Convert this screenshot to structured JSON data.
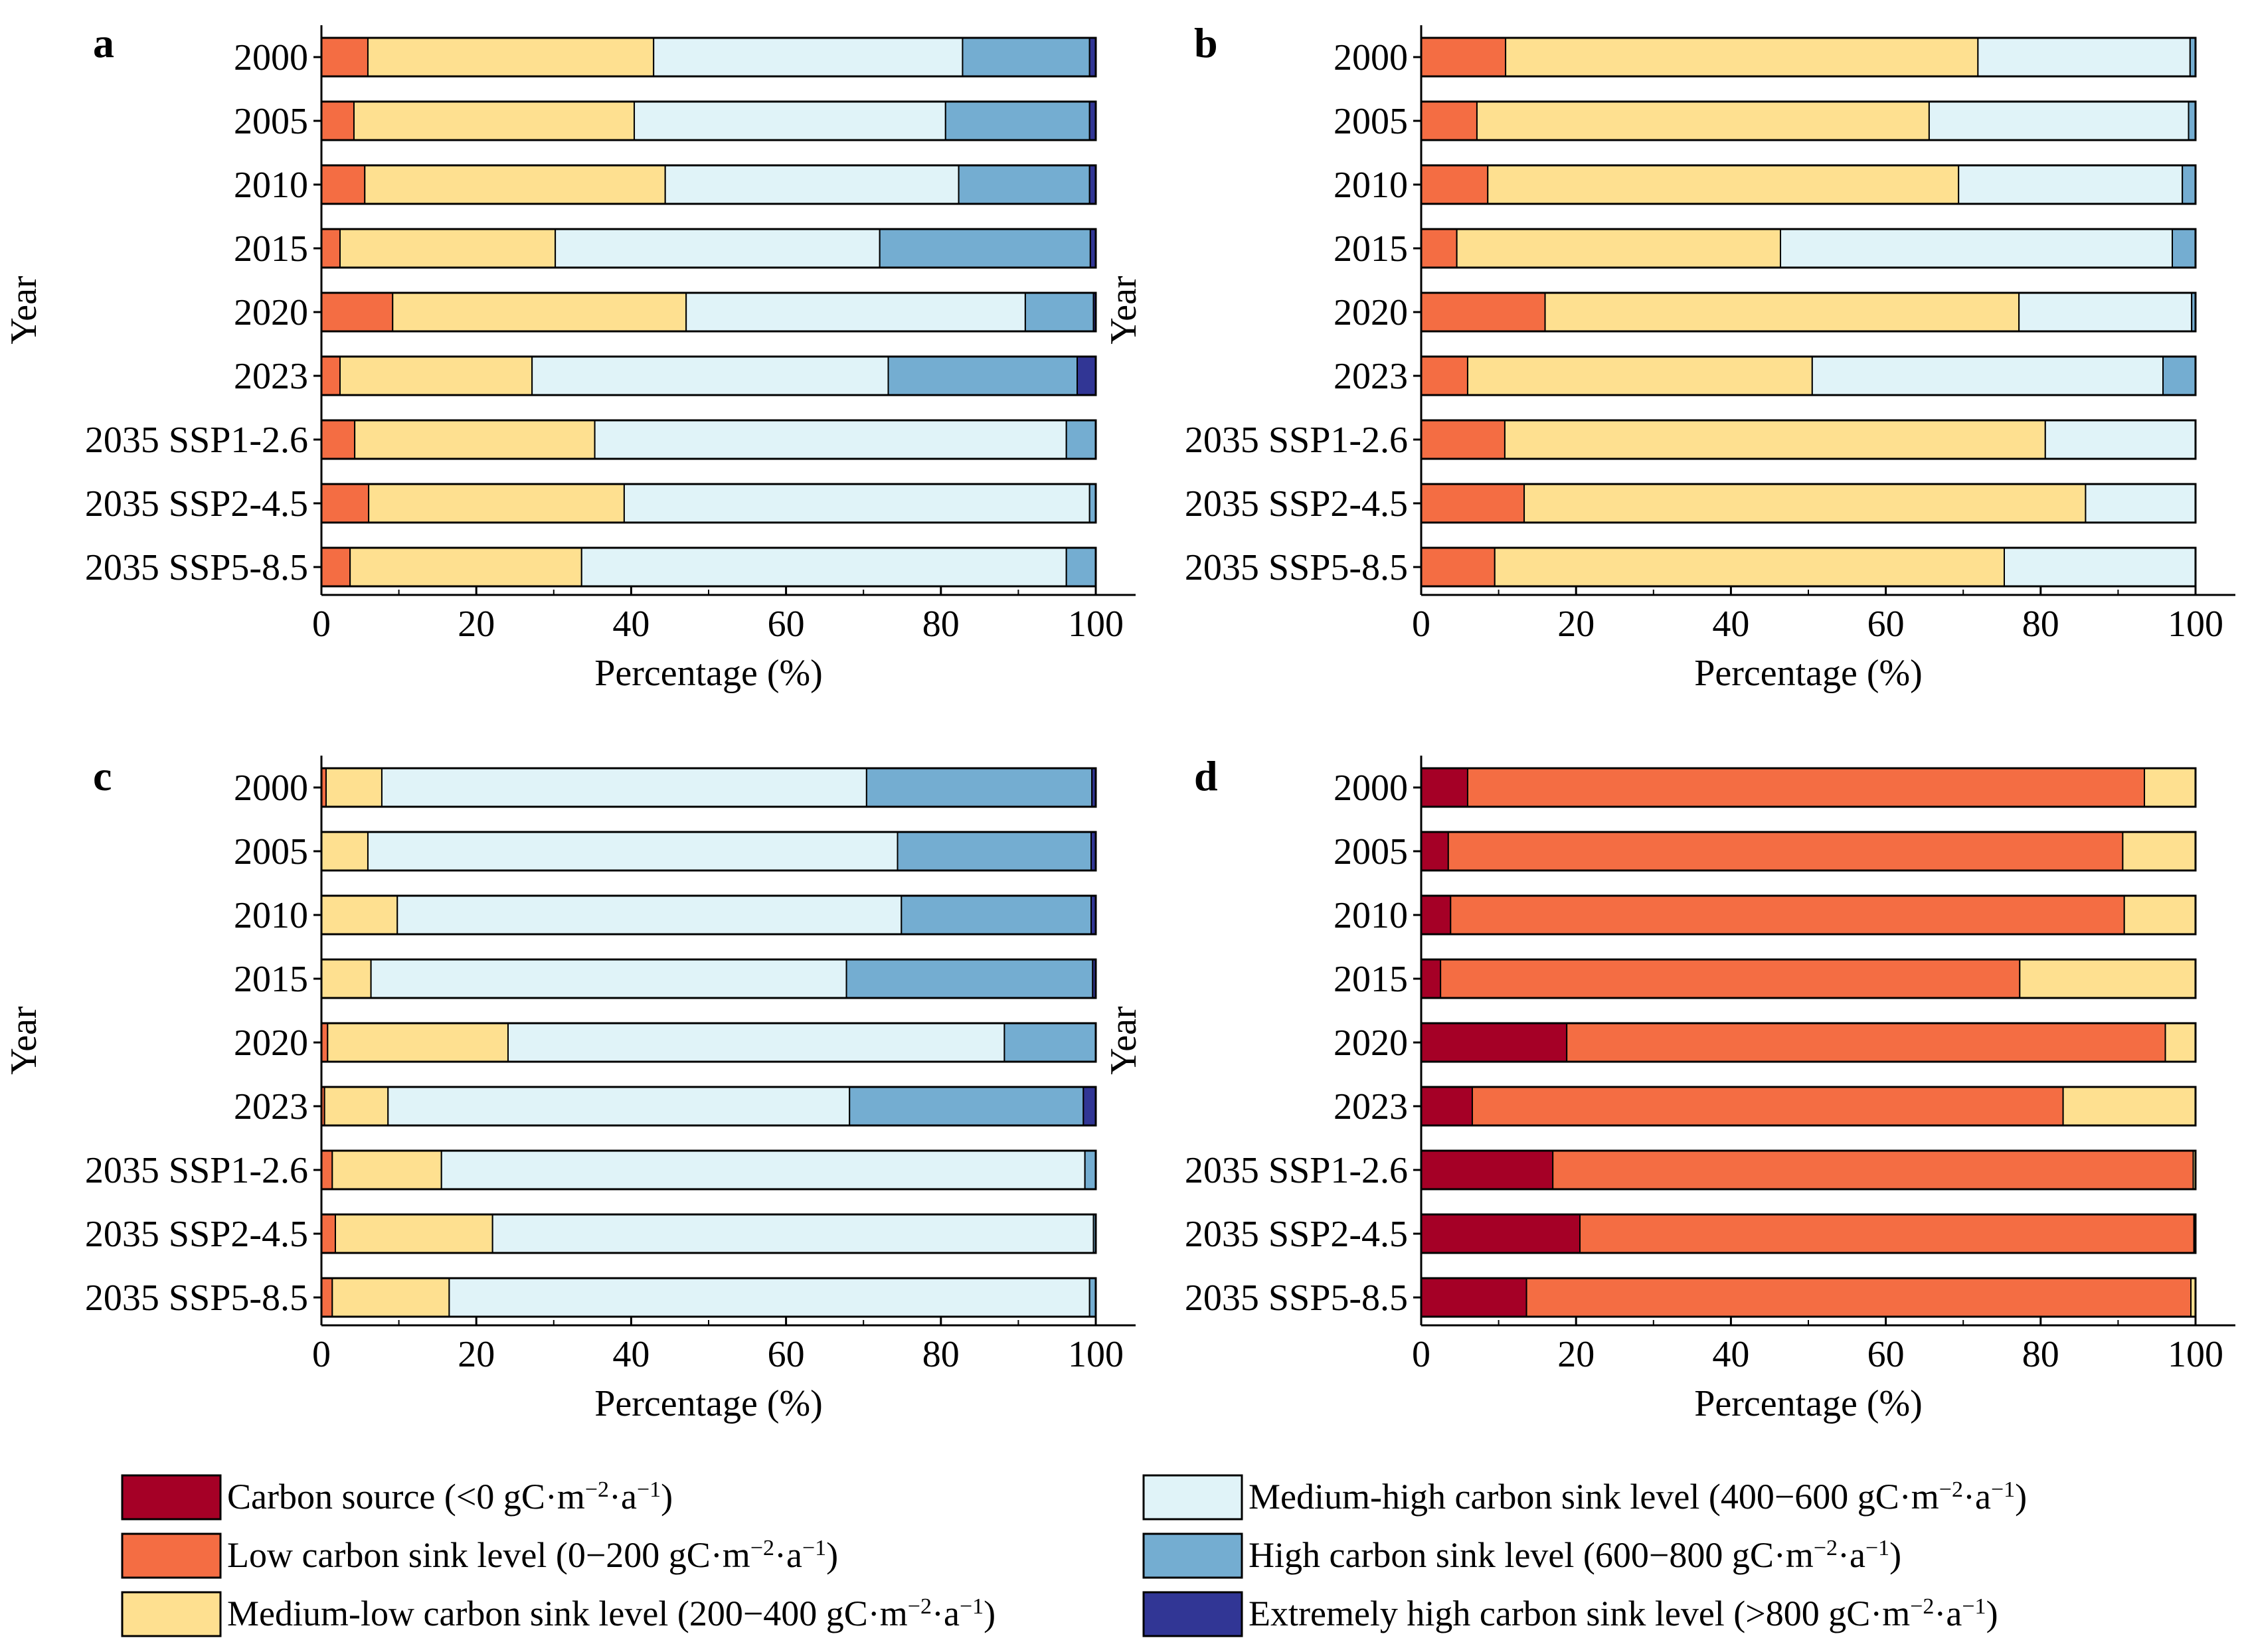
{
  "colors": {
    "source": "#a50026",
    "low": "#f46d43",
    "medlow": "#fee090",
    "medhigh": "#e0f3f8",
    "high": "#74add1",
    "extreme": "#313695"
  },
  "legend": [
    {
      "key": "source",
      "label": "Carbon source (<0 gC·m",
      "exp1": "−2",
      "mid": "·a",
      "exp2": "−1",
      "tail": ")"
    },
    {
      "key": "low",
      "label": "Low carbon sink level (0−200 gC·m",
      "exp1": "−2",
      "mid": "·a",
      "exp2": "−1",
      "tail": ")"
    },
    {
      "key": "medlow",
      "label": "Medium-low carbon sink level (200−400 gC·m",
      "exp1": "−2",
      "mid": "·a",
      "exp2": "−1",
      "tail": ")"
    },
    {
      "key": "medhigh",
      "label": "Medium-high carbon sink level (400−600 gC·m",
      "exp1": "−2",
      "mid": "·a",
      "exp2": "−1",
      "tail": ")"
    },
    {
      "key": "high",
      "label": "High carbon sink level (600−800 gC·m",
      "exp1": "−2",
      "mid": "·a",
      "exp2": "−1",
      "tail": ")"
    },
    {
      "key": "extreme",
      "label": "Extremely high carbon sink level (>800 gC·m",
      "exp1": "−2",
      "mid": "·a",
      "exp2": "−1",
      "tail": ")"
    }
  ],
  "chart_data": [
    {
      "type": "bar",
      "orientation": "horizontal-stacked",
      "panel": "a",
      "xlabel": "Percentage (%)",
      "ylabel": "Year",
      "xlim": [
        0,
        100
      ],
      "xticks": [
        0,
        20,
        40,
        60,
        80,
        100
      ],
      "categories": [
        "2000",
        "2005",
        "2010",
        "2015",
        "2020",
        "2023",
        "2035 SSP1-2.6",
        "2035 SSP2-4.5",
        "2035 SSP5-8.5"
      ],
      "series": [
        {
          "key": "source",
          "values": [
            0,
            0,
            0,
            0,
            0,
            0,
            0,
            0,
            0
          ]
        },
        {
          "key": "low",
          "values": [
            6,
            4.2,
            5.6,
            2.4,
            9.2,
            2.4,
            4.3,
            6.1,
            3.7
          ]
        },
        {
          "key": "medlow",
          "values": [
            36.9,
            36.2,
            38.8,
            27.8,
            37.9,
            24.8,
            31.0,
            33.0,
            29.9
          ]
        },
        {
          "key": "medhigh",
          "values": [
            39.9,
            40.2,
            37.9,
            41.9,
            43.8,
            46.0,
            60.9,
            60.1,
            62.6
          ]
        },
        {
          "key": "high",
          "values": [
            16.4,
            18.6,
            16.9,
            27.2,
            8.8,
            24.4,
            3.8,
            0.8,
            3.8
          ]
        },
        {
          "key": "extreme",
          "values": [
            0.8,
            0.8,
            0.8,
            0.7,
            0.3,
            2.4,
            0,
            0,
            0
          ]
        }
      ]
    },
    {
      "type": "bar",
      "orientation": "horizontal-stacked",
      "panel": "b",
      "xlabel": "Percentage (%)",
      "ylabel": "Year",
      "xlim": [
        0,
        100
      ],
      "xticks": [
        0,
        20,
        40,
        60,
        80,
        100
      ],
      "categories": [
        "2000",
        "2005",
        "2010",
        "2015",
        "2020",
        "2023",
        "2035 SSP1-2.6",
        "2035 SSP2-4.5",
        "2035 SSP5-8.5"
      ],
      "series": [
        {
          "key": "source",
          "values": [
            0,
            0,
            0,
            0,
            0,
            0,
            0,
            0,
            0
          ]
        },
        {
          "key": "low",
          "values": [
            10.9,
            7.2,
            8.6,
            4.6,
            16.0,
            6.0,
            10.8,
            13.3,
            9.5
          ]
        },
        {
          "key": "medlow",
          "values": [
            61.0,
            58.4,
            60.8,
            41.8,
            61.2,
            44.5,
            69.8,
            72.5,
            65.8
          ]
        },
        {
          "key": "medhigh",
          "values": [
            27.4,
            33.5,
            28.9,
            50.6,
            22.3,
            45.3,
            19.4,
            14.2,
            24.7
          ]
        },
        {
          "key": "high",
          "values": [
            0.7,
            0.9,
            1.7,
            3.0,
            0.5,
            4.2,
            0,
            0,
            0
          ]
        },
        {
          "key": "extreme",
          "values": [
            0,
            0,
            0,
            0,
            0,
            0,
            0,
            0,
            0
          ]
        }
      ]
    },
    {
      "type": "bar",
      "orientation": "horizontal-stacked",
      "panel": "c",
      "xlabel": "Percentage (%)",
      "ylabel": "Year",
      "xlim": [
        0,
        100
      ],
      "xticks": [
        0,
        20,
        40,
        60,
        80,
        100
      ],
      "categories": [
        "2000",
        "2005",
        "2010",
        "2015",
        "2020",
        "2023",
        "2035 SSP1-2.6",
        "2035 SSP2-4.5",
        "2035 SSP5-8.5"
      ],
      "series": [
        {
          "key": "source",
          "values": [
            0,
            0,
            0,
            0,
            0,
            0,
            0,
            0,
            0
          ]
        },
        {
          "key": "low",
          "values": [
            0.6,
            0,
            0,
            0,
            0.8,
            0.4,
            1.4,
            1.8,
            1.4
          ]
        },
        {
          "key": "medlow",
          "values": [
            7.2,
            6.0,
            9.8,
            6.4,
            23.3,
            8.2,
            14.1,
            20.3,
            15.1
          ]
        },
        {
          "key": "medhigh",
          "values": [
            62.6,
            68.4,
            65.1,
            61.4,
            64.1,
            59.6,
            83.1,
            77.6,
            82.7
          ]
        },
        {
          "key": "high",
          "values": [
            29.1,
            25.0,
            24.5,
            31.8,
            11.8,
            30.2,
            1.4,
            0.3,
            0.8
          ]
        },
        {
          "key": "extreme",
          "values": [
            0.5,
            0.6,
            0.6,
            0.4,
            0,
            1.6,
            0,
            0,
            0
          ]
        }
      ]
    },
    {
      "type": "bar",
      "orientation": "horizontal-stacked",
      "panel": "d",
      "xlabel": "Percentage (%)",
      "ylabel": "Year",
      "xlim": [
        0,
        100
      ],
      "xticks": [
        0,
        20,
        40,
        60,
        80,
        100
      ],
      "categories": [
        "2000",
        "2005",
        "2010",
        "2015",
        "2020",
        "2023",
        "2035 SSP1-2.6",
        "2035 SSP2-4.5",
        "2035 SSP5-8.5"
      ],
      "series": [
        {
          "key": "source",
          "values": [
            6.0,
            3.5,
            3.8,
            2.5,
            18.8,
            6.6,
            17.0,
            20.5,
            13.6
          ]
        },
        {
          "key": "low",
          "values": [
            87.4,
            87.1,
            87.0,
            74.8,
            77.3,
            76.3,
            82.7,
            79.3,
            85.8
          ]
        },
        {
          "key": "medlow",
          "values": [
            6.6,
            9.4,
            9.2,
            22.7,
            3.9,
            17.1,
            0.3,
            0.2,
            0.6
          ]
        },
        {
          "key": "medhigh",
          "values": [
            0,
            0,
            0,
            0,
            0,
            0,
            0,
            0,
            0
          ]
        },
        {
          "key": "high",
          "values": [
            0,
            0,
            0,
            0,
            0,
            0,
            0,
            0,
            0
          ]
        },
        {
          "key": "extreme",
          "values": [
            0,
            0,
            0,
            0,
            0,
            0,
            0,
            0,
            0
          ]
        }
      ]
    }
  ]
}
